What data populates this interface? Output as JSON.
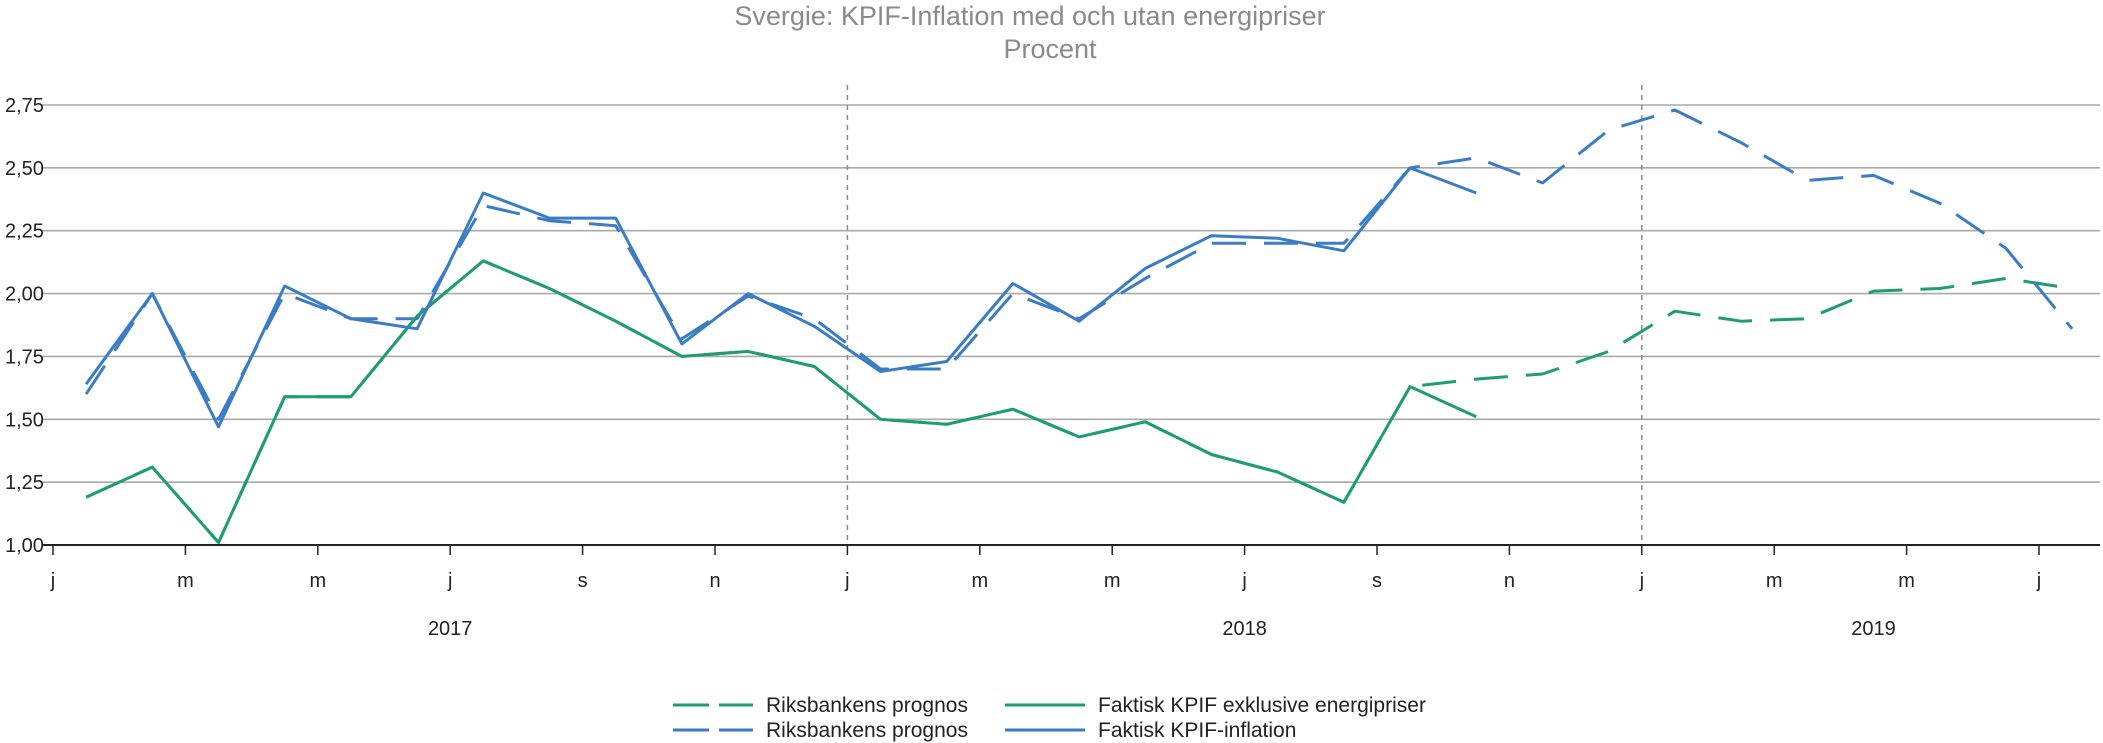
{
  "chart_data": {
    "type": "line",
    "title": "Svergie: KPIF-Inflation med och utan energipriser",
    "subtitle": "Procent",
    "ylim": [
      1.0,
      2.75
    ],
    "yticks": [
      "1,00",
      "1,25",
      "1,50",
      "1,75",
      "2,00",
      "2,25",
      "2,50",
      "2,75"
    ],
    "xlim": [
      0,
      30
    ],
    "xticks": [
      {
        "x": 0,
        "label": "j"
      },
      {
        "x": 2,
        "label": "m"
      },
      {
        "x": 4,
        "label": "m"
      },
      {
        "x": 6,
        "label": "j"
      },
      {
        "x": 8,
        "label": "s"
      },
      {
        "x": 10,
        "label": "n"
      },
      {
        "x": 12,
        "label": "j"
      },
      {
        "x": 14,
        "label": "m"
      },
      {
        "x": 16,
        "label": "m"
      },
      {
        "x": 18,
        "label": "j"
      },
      {
        "x": 20,
        "label": "s"
      },
      {
        "x": 22,
        "label": "n"
      },
      {
        "x": 24,
        "label": "j"
      },
      {
        "x": 26,
        "label": "m"
      },
      {
        "x": 28,
        "label": "m"
      },
      {
        "x": 30,
        "label": "j"
      }
    ],
    "years": [
      {
        "x": 6,
        "label": "2017"
      },
      {
        "x": 18,
        "label": "2018"
      },
      {
        "x": 27.5,
        "label": "2019"
      }
    ],
    "vlines": [
      12,
      24
    ],
    "grid": true,
    "legend_position": "bottom",
    "colors": {
      "green": "#1e9c72",
      "blue": "#3b7dc4",
      "grid": "#a9a9a9",
      "axis": "#222222"
    },
    "series": [
      {
        "name": "Faktisk KPIF exklusive energipriser",
        "color": "#1e9c72",
        "style": "solid",
        "points": [
          [
            0.5,
            1.19
          ],
          [
            1.5,
            1.31
          ],
          [
            2.5,
            1.01
          ],
          [
            3.5,
            1.59
          ],
          [
            4.5,
            1.59
          ],
          [
            5.5,
            1.91
          ],
          [
            6.5,
            2.13
          ],
          [
            7.5,
            2.02
          ],
          [
            8.5,
            1.89
          ],
          [
            9.5,
            1.75
          ],
          [
            10.5,
            1.77
          ],
          [
            11.5,
            1.71
          ],
          [
            12.5,
            1.5
          ],
          [
            13.5,
            1.48
          ],
          [
            14.5,
            1.54
          ],
          [
            15.5,
            1.43
          ],
          [
            16.5,
            1.49
          ],
          [
            17.5,
            1.36
          ],
          [
            18.5,
            1.29
          ],
          [
            19.5,
            1.17
          ],
          [
            20.5,
            1.63
          ],
          [
            21.5,
            1.51
          ]
        ]
      },
      {
        "name": "Riksbankens prognos",
        "color": "#1e9c72",
        "style": "dashed",
        "points": [
          [
            0.5,
            1.19
          ],
          [
            1.5,
            1.31
          ],
          [
            2.5,
            1.01
          ],
          [
            3.5,
            1.59
          ],
          [
            4.5,
            1.59
          ],
          [
            5.5,
            1.91
          ],
          [
            6.5,
            2.13
          ],
          [
            7.5,
            2.02
          ],
          [
            8.5,
            1.89
          ],
          [
            9.5,
            1.75
          ],
          [
            10.5,
            1.77
          ],
          [
            11.5,
            1.71
          ],
          [
            12.5,
            1.5
          ],
          [
            13.5,
            1.48
          ],
          [
            14.5,
            1.54
          ],
          [
            15.5,
            1.43
          ],
          [
            16.5,
            1.49
          ],
          [
            17.5,
            1.36
          ],
          [
            18.5,
            1.29
          ],
          [
            19.5,
            1.17
          ],
          [
            20.5,
            1.63
          ],
          [
            21.5,
            1.66
          ],
          [
            22.5,
            1.68
          ],
          [
            23.5,
            1.77
          ],
          [
            24.5,
            1.93
          ],
          [
            25.5,
            1.89
          ],
          [
            26.5,
            1.9
          ],
          [
            27.5,
            2.01
          ],
          [
            28.5,
            2.02
          ],
          [
            29.5,
            2.06
          ],
          [
            30.5,
            2.02
          ]
        ]
      },
      {
        "name": "Faktisk KPIF-inflation",
        "color": "#3b7dc4",
        "style": "solid",
        "points": [
          [
            0.5,
            1.64
          ],
          [
            1.5,
            2.0
          ],
          [
            2.5,
            1.47
          ],
          [
            3.5,
            2.03
          ],
          [
            4.5,
            1.9
          ],
          [
            5.5,
            1.86
          ],
          [
            6.5,
            2.4
          ],
          [
            7.5,
            2.3
          ],
          [
            8.5,
            2.3
          ],
          [
            9.5,
            1.8
          ],
          [
            10.5,
            2.0
          ],
          [
            11.5,
            1.87
          ],
          [
            12.5,
            1.69
          ],
          [
            13.5,
            1.73
          ],
          [
            14.5,
            2.04
          ],
          [
            15.5,
            1.89
          ],
          [
            16.5,
            2.1
          ],
          [
            17.5,
            2.23
          ],
          [
            18.5,
            2.22
          ],
          [
            19.5,
            2.17
          ],
          [
            20.5,
            2.5
          ],
          [
            21.5,
            2.4
          ]
        ]
      },
      {
        "name": "Riksbankens prognos",
        "color": "#3b7dc4",
        "style": "dashed",
        "points": [
          [
            0.5,
            1.6
          ],
          [
            1.5,
            2.0
          ],
          [
            2.5,
            1.5
          ],
          [
            3.5,
            2.0
          ],
          [
            4.5,
            1.9
          ],
          [
            5.5,
            1.9
          ],
          [
            6.5,
            2.35
          ],
          [
            7.5,
            2.29
          ],
          [
            8.5,
            2.27
          ],
          [
            9.5,
            1.82
          ],
          [
            10.5,
            1.99
          ],
          [
            11.5,
            1.9
          ],
          [
            12.5,
            1.7
          ],
          [
            13.5,
            1.7
          ],
          [
            14.5,
            2.0
          ],
          [
            15.5,
            1.9
          ],
          [
            16.5,
            2.06
          ],
          [
            17.5,
            2.2
          ],
          [
            18.5,
            2.2
          ],
          [
            19.5,
            2.2
          ],
          [
            20.5,
            2.5
          ],
          [
            21.5,
            2.54
          ],
          [
            22.5,
            2.44
          ],
          [
            23.5,
            2.65
          ],
          [
            24.5,
            2.73
          ],
          [
            25.5,
            2.6
          ],
          [
            26.5,
            2.45
          ],
          [
            27.5,
            2.47
          ],
          [
            28.5,
            2.36
          ],
          [
            29.5,
            2.18
          ],
          [
            30.5,
            1.86
          ]
        ]
      }
    ]
  },
  "legend": {
    "items": [
      {
        "label": "Riksbankens prognos",
        "color": "#1e9c72",
        "style": "dashed"
      },
      {
        "label": "Faktisk KPIF exklusive energipriser",
        "color": "#1e9c72",
        "style": "solid"
      },
      {
        "label": "Riksbankens prognos",
        "color": "#3b7dc4",
        "style": "dashed"
      },
      {
        "label": "Faktisk KPIF-inflation",
        "color": "#3b7dc4",
        "style": "solid"
      }
    ]
  }
}
